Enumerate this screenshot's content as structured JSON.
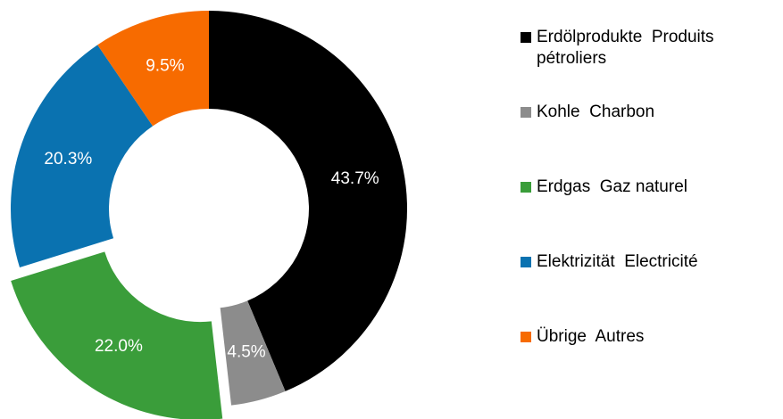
{
  "chart_data": {
    "type": "donut",
    "categories": [
      "Erdölprodukte  Produits pétroliers",
      "Kohle  Charbon",
      "Erdgas  Gaz naturel",
      "Elektrizität  Electricité",
      "Übrige  Autres"
    ],
    "values": [
      43.7,
      4.5,
      22.0,
      20.3,
      9.5
    ],
    "value_labels": [
      "43.7%",
      "4.5%",
      "22.0%",
      "20.3%",
      "9.5%"
    ],
    "colors": [
      "#000000",
      "#8c8c8c",
      "#3a9d3a",
      "#0a72b0",
      "#f76b00"
    ],
    "exploded": [
      false,
      false,
      true,
      false,
      false
    ],
    "legend": "right"
  }
}
